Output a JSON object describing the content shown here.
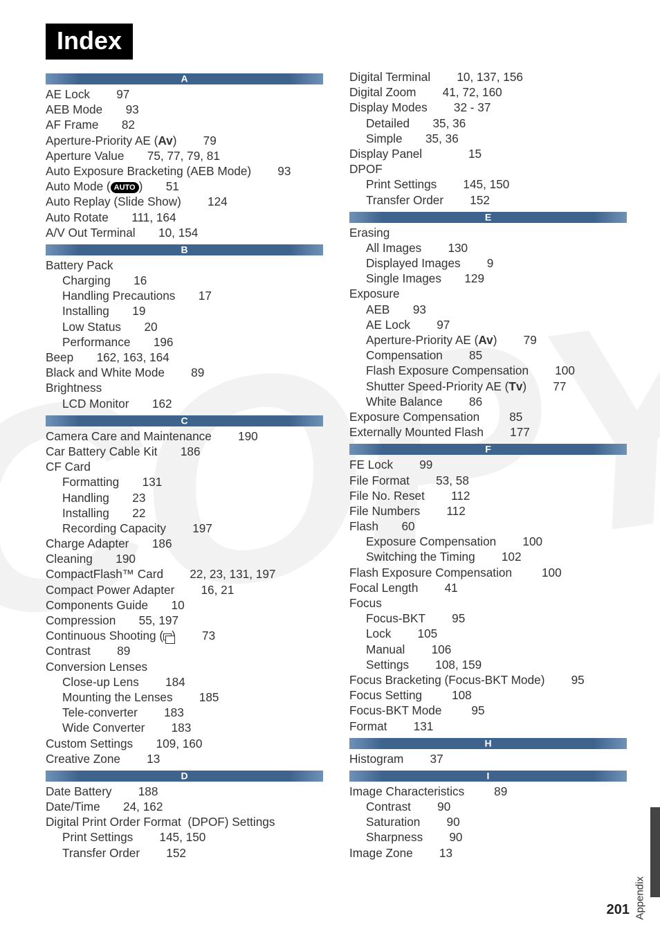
{
  "title": "Index",
  "watermark_text": "COPY",
  "side_label": "Appendix",
  "page_number": "201",
  "sections": {
    "A": [
      {
        "t": "AE Lock      97"
      },
      {
        "t": "AEB Mode     93"
      },
      {
        "t": "AF Frame     82"
      },
      {
        "t": "Aperture-Priority AE (Av)      79",
        "av": true
      },
      {
        "t": "Aperture Value     75, 77, 79, 81"
      },
      {
        "t": "Auto Exposure Bracketing (AEB Mode)      93"
      },
      {
        "t": "Auto Mode (AUTO)     51",
        "pill": true
      },
      {
        "t": "Auto Replay (Slide Show)      124"
      },
      {
        "t": "Auto Rotate     111, 164"
      },
      {
        "t": "A/V Out Terminal     10, 154"
      }
    ],
    "B": [
      {
        "t": "Battery Pack"
      },
      {
        "t": "Charging     16",
        "sub": true
      },
      {
        "t": "Handling Precautions     17",
        "sub": true
      },
      {
        "t": "Installing     19",
        "sub": true
      },
      {
        "t": "Low Status     20",
        "sub": true
      },
      {
        "t": "Performance     196",
        "sub": true
      },
      {
        "t": "Beep     162, 163, 164"
      },
      {
        "t": "Black and White Mode      89"
      },
      {
        "t": "Brightness"
      },
      {
        "t": "LCD Monitor     162",
        "sub": true
      }
    ],
    "C": [
      {
        "t": "Camera Care and Maintenance      190"
      },
      {
        "t": "Car Battery Cable Kit     186"
      },
      {
        "t": "CF Card"
      },
      {
        "t": "Formatting     131",
        "sub": true
      },
      {
        "t": "Handling     23",
        "sub": true
      },
      {
        "t": "Installing     22",
        "sub": true
      },
      {
        "t": "Recording Capacity      197",
        "sub": true
      },
      {
        "t": "Charge Adapter     186"
      },
      {
        "t": "Cleaning     190"
      },
      {
        "t": "CompactFlash™ Card      22, 23, 131, 197"
      },
      {
        "t": "Compact Power Adapter      16, 21"
      },
      {
        "t": "Components Guide     10"
      },
      {
        "t": "Compression     55, 197"
      },
      {
        "t": "Continuous Shooting (❐)      73",
        "cont": true
      },
      {
        "t": "Contrast      89"
      },
      {
        "t": "Conversion Lenses"
      },
      {
        "t": "Close-up Lens      184",
        "sub": true
      },
      {
        "t": "Mounting the Lenses      185",
        "sub": true
      },
      {
        "t": "Tele-converter      183",
        "sub": true
      },
      {
        "t": "Wide Converter      183",
        "sub": true
      },
      {
        "t": "Custom Settings     109, 160"
      },
      {
        "t": "Creative Zone      13"
      }
    ],
    "D": [
      {
        "t": "Date Battery      188"
      },
      {
        "t": "Date/Time     24, 162"
      },
      {
        "t": "Digital Print Order Format  (DPOF) Settings"
      },
      {
        "t": "Print Settings      145, 150",
        "sub": true
      },
      {
        "t": "Transfer Order      152",
        "sub": true
      }
    ],
    "D2": [
      {
        "t": "Digital Terminal      10, 137, 156"
      },
      {
        "t": "Digital Zoom      41, 72, 160"
      },
      {
        "t": "Display Modes      32 - 37"
      },
      {
        "t": "Detailed     35, 36",
        "sub": true
      },
      {
        "t": "Simple     35, 36",
        "sub": true
      },
      {
        "t": "Display Panel          15"
      },
      {
        "t": "DPOF"
      },
      {
        "t": "Print Settings      145, 150",
        "sub": true
      },
      {
        "t": "Transfer Order      152",
        "sub": true
      }
    ],
    "E": [
      {
        "t": "Erasing"
      },
      {
        "t": "All Images      130",
        "sub": true
      },
      {
        "t": "Displayed Images      9",
        "sub": true
      },
      {
        "t": "Single Images     129",
        "sub": true
      },
      {
        "t": "Exposure"
      },
      {
        "t": "AEB     93",
        "sub": true
      },
      {
        "t": "AE Lock      97",
        "sub": true
      },
      {
        "t": "Aperture-Priority AE (Av)      79",
        "sub": true,
        "av": true
      },
      {
        "t": "Compensation      85",
        "sub": true
      },
      {
        "t": "Flash Exposure Compensation      100",
        "sub": true
      },
      {
        "t": "Shutter Speed-Priority AE (Tv)      77",
        "sub": true,
        "tv": true
      },
      {
        "t": "White Balance      86",
        "sub": true
      },
      {
        "t": "Exposure Compensation       85"
      },
      {
        "t": "Externally Mounted Flash      177"
      }
    ],
    "F": [
      {
        "t": "FE Lock      99"
      },
      {
        "t": "File Format      53, 58"
      },
      {
        "t": "File No. Reset      112"
      },
      {
        "t": "File Numbers      112"
      },
      {
        "t": "Flash     60"
      },
      {
        "t": "Exposure Compensation      100",
        "sub": true
      },
      {
        "t": "Switching the Timing      102",
        "sub": true
      },
      {
        "t": "Flash Exposure Compensation       100"
      },
      {
        "t": "Focal Length      41"
      },
      {
        "t": "Focus"
      },
      {
        "t": "Focus-BKT      95",
        "sub": true
      },
      {
        "t": "Lock      105",
        "sub": true
      },
      {
        "t": "Manual      106",
        "sub": true
      },
      {
        "t": "Settings      108, 159",
        "sub": true
      },
      {
        "t": "Focus Bracketing (Focus-BKT Mode)      95"
      },
      {
        "t": "Focus Setting       108"
      },
      {
        "t": "Focus-BKT Mode       95"
      },
      {
        "t": "Format      131"
      }
    ],
    "H": [
      {
        "t": "Histogram      37"
      }
    ],
    "I": [
      {
        "t": "Image Characteristics       89"
      },
      {
        "t": "Contrast      90",
        "sub": true
      },
      {
        "t": "Saturation      90",
        "sub": true
      },
      {
        "t": "Sharpness      90",
        "sub": true
      },
      {
        "t": "Image Zone      13"
      }
    ]
  },
  "left_sections": [
    "A",
    "B",
    "C",
    "D"
  ],
  "right_top_entries": "D2",
  "right_sections": [
    "E",
    "F",
    "H",
    "I"
  ]
}
